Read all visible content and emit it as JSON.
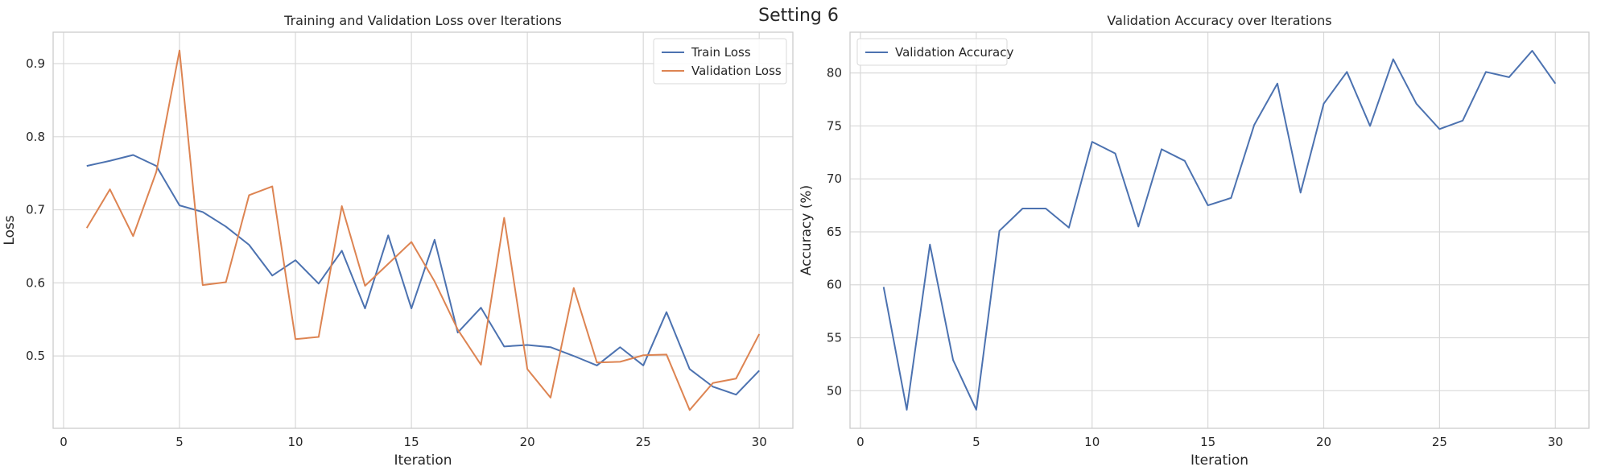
{
  "figure": {
    "suptitle": "Setting 6"
  },
  "chart_data": [
    {
      "type": "line",
      "title": "Training and Validation Loss over Iterations",
      "xlabel": "Iteration",
      "ylabel": "Loss",
      "xlim": [
        -0.45,
        31.45
      ],
      "ylim": [
        0.401,
        0.943
      ],
      "xticks": [
        0,
        5,
        10,
        15,
        20,
        25,
        30
      ],
      "yticks": [
        0.5,
        0.6,
        0.7,
        0.8,
        0.9
      ],
      "grid": true,
      "legend": "upper right",
      "x": [
        1,
        2,
        3,
        4,
        5,
        6,
        7,
        8,
        9,
        10,
        11,
        12,
        13,
        14,
        15,
        16,
        17,
        18,
        19,
        20,
        21,
        22,
        23,
        24,
        25,
        26,
        27,
        28,
        29,
        30
      ],
      "series": [
        {
          "name": "Train Loss",
          "color": "#4c72b0",
          "values": [
            0.76,
            0.767,
            0.775,
            0.76,
            0.706,
            0.697,
            0.677,
            0.652,
            0.61,
            0.631,
            0.599,
            0.644,
            0.565,
            0.665,
            0.565,
            0.659,
            0.532,
            0.566,
            0.513,
            0.515,
            0.512,
            0.5,
            0.487,
            0.512,
            0.487,
            0.56,
            0.482,
            0.458,
            0.447,
            0.48
          ]
        },
        {
          "name": "Validation Loss",
          "color": "#dd8452",
          "values": [
            0.675,
            0.728,
            0.664,
            0.752,
            0.918,
            0.597,
            0.601,
            0.72,
            0.732,
            0.523,
            0.526,
            0.705,
            0.596,
            0.626,
            0.656,
            0.602,
            0.536,
            0.488,
            0.689,
            0.482,
            0.443,
            0.593,
            0.491,
            0.492,
            0.501,
            0.502,
            0.426,
            0.463,
            0.469,
            0.53
          ]
        }
      ]
    },
    {
      "type": "line",
      "title": "Validation Accuracy over Iterations",
      "xlabel": "Iteration",
      "ylabel": "Accuracy (%)",
      "xlim": [
        -0.45,
        31.45
      ],
      "ylim": [
        46.45,
        83.85
      ],
      "xticks": [
        0,
        5,
        10,
        15,
        20,
        25,
        30
      ],
      "yticks": [
        50,
        55,
        60,
        65,
        70,
        75,
        80
      ],
      "grid": true,
      "legend": "upper left",
      "x": [
        1,
        2,
        3,
        4,
        5,
        6,
        7,
        8,
        9,
        10,
        11,
        12,
        13,
        14,
        15,
        16,
        17,
        18,
        19,
        20,
        21,
        22,
        23,
        24,
        25,
        26,
        27,
        28,
        29,
        30
      ],
      "series": [
        {
          "name": "Validation Accuracy",
          "color": "#4c72b0",
          "values": [
            59.8,
            48.2,
            63.8,
            52.9,
            48.2,
            65.1,
            67.2,
            67.2,
            65.4,
            73.5,
            72.4,
            65.5,
            72.8,
            71.7,
            67.5,
            68.2,
            75.1,
            79.0,
            68.7,
            77.1,
            80.1,
            75.0,
            81.3,
            77.1,
            74.7,
            75.5,
            80.1,
            79.6,
            82.1,
            79.0
          ]
        }
      ]
    }
  ]
}
